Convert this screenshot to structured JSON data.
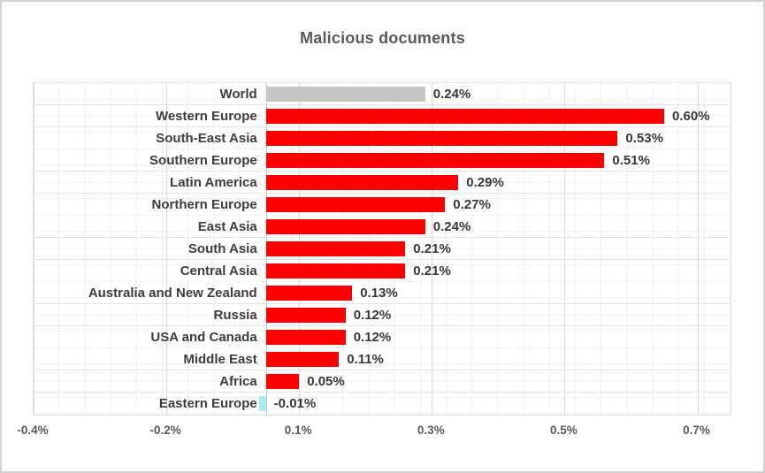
{
  "window": {
    "background": "#ffffff",
    "border_color": "#d2d2d2"
  },
  "chart_data": {
    "type": "bar",
    "orientation": "horizontal",
    "title": "Malicious documents",
    "categories": [
      "World",
      "Western Europe",
      "South-East Asia",
      "Southern Europe",
      "Latin America",
      "Northern Europe",
      "East Asia",
      "South Asia",
      "Central Asia",
      "Australia and New Zealand",
      "Russia",
      "USA and Canada",
      "Middle East",
      "Africa",
      "Eastern Europe"
    ],
    "values": [
      0.24,
      0.6,
      0.53,
      0.51,
      0.29,
      0.27,
      0.24,
      0.21,
      0.21,
      0.13,
      0.12,
      0.12,
      0.11,
      0.05,
      -0.01
    ],
    "value_labels": [
      "0.24%",
      "0.60%",
      "0.53%",
      "0.51%",
      "0.29%",
      "0.27%",
      "0.24%",
      "0.21%",
      "0.21%",
      "0.13%",
      "0.12%",
      "0.12%",
      "0.11%",
      "0.05%",
      "-0.01%"
    ],
    "bar_colors": [
      "#c6c6c6",
      "#ff0000",
      "#ff0000",
      "#ff0000",
      "#ff0000",
      "#ff0000",
      "#ff0000",
      "#ff0000",
      "#ff0000",
      "#ff0000",
      "#ff0000",
      "#ff0000",
      "#ff0000",
      "#ff0000",
      "#a8eef1"
    ],
    "colors": {
      "series_default": "#ff0000",
      "world_bar": "#c6c6c6",
      "negative_bar": "#a8eef1",
      "grid": "#dadada",
      "text": "#3d3d3d"
    },
    "x_axis": {
      "min": -0.35,
      "max": 0.7,
      "unit": "percent",
      "tick_values": [
        -0.35,
        -0.15,
        0.05,
        0.25,
        0.45,
        0.65
      ],
      "tick_labels": [
        "-0.4%",
        "-0.2%",
        "0.1%",
        "0.3%",
        "0.5%",
        "0.7%"
      ]
    },
    "grid": true,
    "legend": false
  }
}
